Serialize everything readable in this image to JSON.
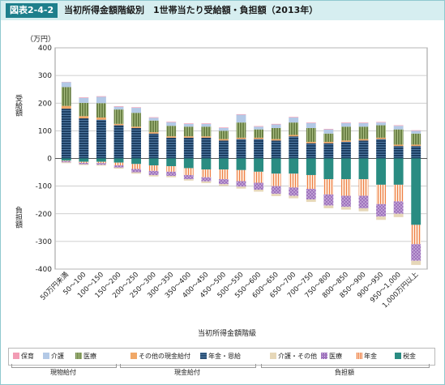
{
  "figure_label": "図表2-4-2",
  "title": "当初所得金額階級別　1世帯当たり受給額・負担額（2013年）",
  "chart_data": {
    "type": "bar",
    "stacked": true,
    "unit_label": "（万円）",
    "ylabel_top": "受給額",
    "ylabel_bottom": "負担額",
    "xlabel": "当初所得金額階級",
    "ylim": [
      -400,
      400
    ],
    "yticks": [
      400,
      300,
      200,
      100,
      0,
      -100,
      -200,
      -300,
      -400
    ],
    "grid": true,
    "categories": [
      "50万円未満",
      "50～100",
      "100～150",
      "150～200",
      "200～250",
      "250～300",
      "300～350",
      "350～400",
      "400～450",
      "450～500",
      "500～550",
      "550～600",
      "600～650",
      "650～700",
      "700～750",
      "750～800",
      "800～850",
      "850～900",
      "900～950",
      "950～1,000",
      "1,000万円以上"
    ],
    "benefit_series": [
      {
        "name": "年金・恩給",
        "color": "#1d3f63",
        "values": [
          180,
          145,
          140,
          120,
          110,
          90,
          75,
          75,
          75,
          65,
          70,
          70,
          65,
          80,
          55,
          55,
          60,
          65,
          70,
          45,
          45
        ]
      },
      {
        "name": "その他の現金給付",
        "color": "#f0a868",
        "values": [
          10,
          8,
          8,
          5,
          5,
          5,
          5,
          5,
          5,
          5,
          5,
          5,
          5,
          5,
          5,
          5,
          5,
          5,
          5,
          5,
          5
        ]
      },
      {
        "name": "医療",
        "color": "#7a8f55",
        "values": [
          68,
          48,
          52,
          52,
          50,
          42,
          38,
          35,
          35,
          30,
          55,
          30,
          40,
          45,
          50,
          30,
          50,
          45,
          45,
          55,
          40
        ]
      },
      {
        "name": "介護",
        "color": "#b3c9e6",
        "values": [
          18,
          18,
          23,
          10,
          18,
          10,
          13,
          10,
          10,
          10,
          28,
          10,
          13,
          18,
          18,
          15,
          13,
          13,
          10,
          13,
          10
        ]
      },
      {
        "name": "保育",
        "color": "#f29cb4",
        "values": [
          1,
          2,
          2,
          2,
          2,
          2,
          2,
          2,
          2,
          2,
          2,
          2,
          2,
          2,
          2,
          2,
          2,
          2,
          2,
          2,
          2
        ]
      }
    ],
    "burden_series": [
      {
        "name": "税金",
        "color": "#2a8c82",
        "values": [
          -8,
          -12,
          -12,
          -15,
          -20,
          -25,
          -28,
          -35,
          -40,
          -40,
          -42,
          -48,
          -55,
          -55,
          -60,
          -75,
          -75,
          -75,
          -95,
          -95,
          -240
        ]
      },
      {
        "name": "年金",
        "color": "#f08a5a",
        "values": [
          -2,
          -4,
          -5,
          -10,
          -18,
          -20,
          -20,
          -25,
          -28,
          -35,
          -40,
          -40,
          -45,
          -50,
          -50,
          -55,
          -60,
          -60,
          -70,
          -60,
          -70
        ]
      },
      {
        "name": "医療",
        "color": "#a57cc0",
        "values": [
          -4,
          -5,
          -6,
          -8,
          -12,
          -15,
          -15,
          -15,
          -15,
          -18,
          -20,
          -25,
          -28,
          -30,
          -38,
          -40,
          -40,
          -45,
          -45,
          -45,
          -60
        ]
      },
      {
        "name": "介護・その他",
        "color": "#e6d7b8",
        "values": [
          -3,
          -3,
          -3,
          -4,
          -5,
          -5,
          -5,
          -5,
          -6,
          -6,
          -7,
          -7,
          -8,
          -9,
          -9,
          -10,
          -10,
          -11,
          -12,
          -12,
          -15
        ]
      }
    ],
    "legend": [
      {
        "name": "保育",
        "color": "#f29cb4",
        "style": "solid"
      },
      {
        "name": "介護",
        "color": "#b3c9e6",
        "style": "solid"
      },
      {
        "name": "医療",
        "color": "#7a8f55",
        "style": "striped"
      },
      {
        "name": "その他の現金給付",
        "color": "#f0a868",
        "style": "solid"
      },
      {
        "name": "年金・恩給",
        "color": "#1d3f63",
        "style": "striped"
      },
      {
        "name": "介護・その他",
        "color": "#e6d7b8",
        "style": "solid"
      },
      {
        "name": "医療",
        "color": "#a57cc0",
        "style": "dotted"
      },
      {
        "name": "年金",
        "color": "#f08a5a",
        "style": "striped"
      },
      {
        "name": "税金",
        "color": "#2a8c82",
        "style": "solid"
      }
    ],
    "groups": [
      "現物給付",
      "現金給付",
      "負担額"
    ]
  }
}
